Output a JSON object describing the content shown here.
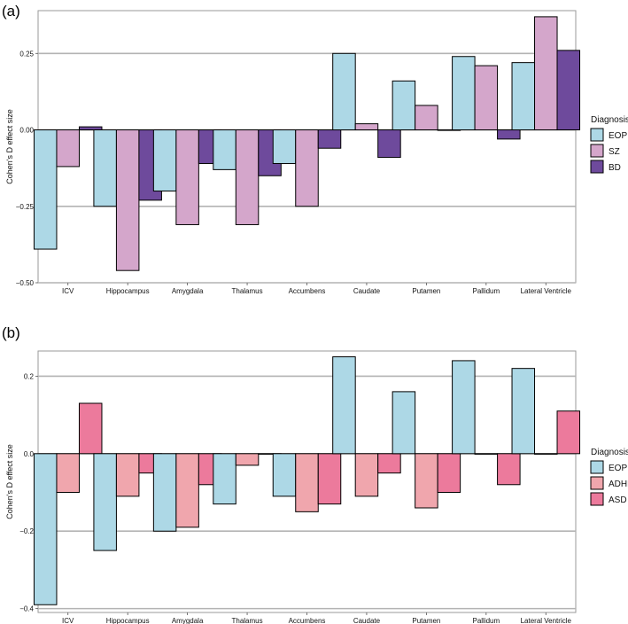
{
  "chart_data": [
    {
      "panel_label": "(a)",
      "type": "bar",
      "ylabel": "Cohen's D effect size",
      "xlabel": "",
      "ylim": [
        -0.5,
        0.39
      ],
      "yticks": [
        -0.5,
        -0.25,
        0.0,
        0.25
      ],
      "ytick_labels": [
        "−0.50",
        "−0.25",
        "0.00",
        "0.25"
      ],
      "grid": "horizontal at ticks",
      "categories": [
        "ICV",
        "Hippocampus",
        "Amygdala",
        "Thalamus",
        "Accumbens",
        "Caudate",
        "Putamen",
        "Pallidum",
        "Lateral Ventricle"
      ],
      "legend": {
        "title": "Diagnosis",
        "placement": "right"
      },
      "series": [
        {
          "name": "EOP",
          "color": "#add8e6",
          "values": [
            -0.39,
            -0.25,
            -0.2,
            -0.13,
            -0.11,
            0.25,
            0.16,
            0.24,
            0.22
          ]
        },
        {
          "name": "SZ",
          "color": "#d4a6cb",
          "values": [
            -0.12,
            -0.46,
            -0.31,
            -0.31,
            -0.25,
            0.02,
            0.08,
            0.21,
            0.37
          ]
        },
        {
          "name": "BD",
          "color": "#6e4a9c",
          "values": [
            0.01,
            -0.23,
            -0.11,
            -0.15,
            -0.06,
            -0.09,
            0.0,
            -0.03,
            0.26
          ]
        }
      ]
    },
    {
      "panel_label": "(b)",
      "type": "bar",
      "ylabel": "Cohen's D effect size",
      "xlabel": "",
      "ylim": [
        -0.41,
        0.265
      ],
      "yticks": [
        -0.4,
        -0.2,
        0.0,
        0.2
      ],
      "ytick_labels": [
        "−0.4",
        "−0.2",
        "0.0",
        "0.2"
      ],
      "grid": "horizontal at ticks",
      "categories": [
        "ICV",
        "Hippocampus",
        "Amygdala",
        "Thalamus",
        "Accumbens",
        "Caudate",
        "Putamen",
        "Pallidum",
        "Lateral Ventricle"
      ],
      "legend": {
        "title": "Diagnosis",
        "placement": "right"
      },
      "series": [
        {
          "name": "EOP",
          "color": "#add8e6",
          "values": [
            -0.39,
            -0.25,
            -0.2,
            -0.13,
            -0.11,
            0.25,
            0.16,
            0.24,
            0.22
          ]
        },
        {
          "name": "ADHD",
          "color": "#f0a6ad",
          "values": [
            -0.1,
            -0.11,
            -0.19,
            -0.03,
            -0.15,
            -0.11,
            -0.14,
            0.0,
            0.0
          ]
        },
        {
          "name": "ASD",
          "color": "#ec7a9c",
          "values": [
            0.13,
            -0.05,
            -0.08,
            0.0,
            -0.13,
            -0.05,
            -0.1,
            -0.08,
            0.11
          ]
        }
      ]
    }
  ]
}
